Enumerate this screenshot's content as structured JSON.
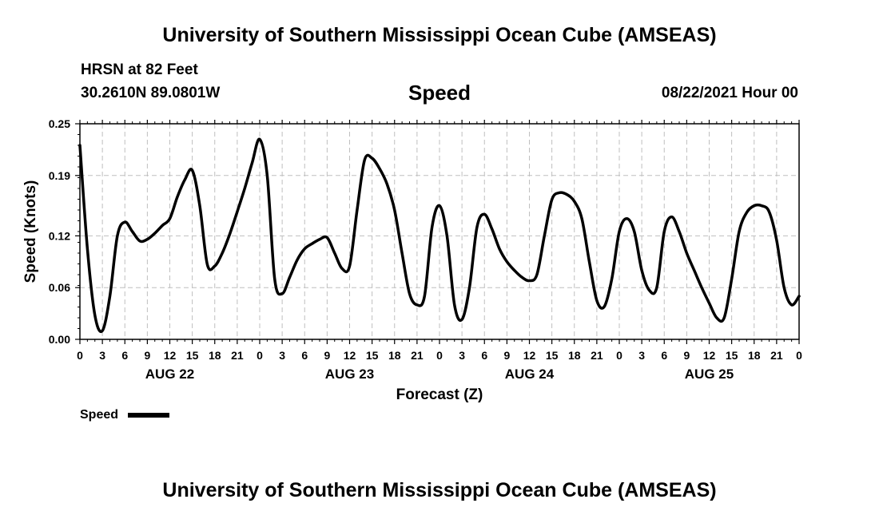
{
  "page": {
    "title_top": "University of Southern Mississippi Ocean Cube (AMSEAS)",
    "title_bottom": "University of Southern Mississippi Ocean Cube (AMSEAS)",
    "station": "HRSN at 82 Feet",
    "coords": "30.2610N  89.0801W",
    "variable": "Speed",
    "datetime": "08/22/2021 Hour 00"
  },
  "colors": {
    "line": "#000000",
    "grid": "#bfbfbf",
    "background": "#ffffff"
  },
  "chart_data": {
    "type": "line",
    "title": "Speed",
    "xlabel": "Forecast (Z)",
    "ylabel": "Speed (Knots)",
    "xlim": [
      0,
      96
    ],
    "ylim": [
      0,
      0.25
    ],
    "yticks": [
      0.0,
      0.06,
      0.12,
      0.19,
      0.25
    ],
    "ytick_labels": [
      "0.00",
      "0.06",
      "0.12",
      "0.19",
      "0.25"
    ],
    "xticks": [
      0,
      3,
      6,
      9,
      12,
      15,
      18,
      21,
      24,
      27,
      30,
      33,
      36,
      39,
      42,
      45,
      48,
      51,
      54,
      57,
      60,
      63,
      66,
      69,
      72,
      75,
      78,
      81,
      84,
      87,
      90,
      93,
      96
    ],
    "xtick_labels": [
      "0",
      "3",
      "6",
      "9",
      "12",
      "15",
      "18",
      "21",
      "0",
      "3",
      "6",
      "9",
      "12",
      "15",
      "18",
      "21",
      "0",
      "3",
      "6",
      "9",
      "12",
      "15",
      "18",
      "21",
      "0",
      "3",
      "6",
      "9",
      "12",
      "15",
      "18",
      "21",
      "0"
    ],
    "day_labels": [
      {
        "hour": 12,
        "label": "AUG 22"
      },
      {
        "hour": 36,
        "label": "AUG 23"
      },
      {
        "hour": 60,
        "label": "AUG 24"
      },
      {
        "hour": 84,
        "label": "AUG 25"
      }
    ],
    "legend": {
      "label": "Speed",
      "position": "bottom-left"
    },
    "series": [
      {
        "name": "Speed",
        "x": [
          0,
          1,
          2,
          3,
          4,
          5,
          6,
          7,
          8,
          9,
          10,
          11,
          12,
          13,
          14,
          15,
          16,
          17,
          18,
          19,
          20,
          21,
          22,
          23,
          24,
          25,
          26,
          27,
          28,
          29,
          30,
          31,
          32,
          33,
          34,
          35,
          36,
          37,
          38,
          39,
          40,
          41,
          42,
          43,
          44,
          45,
          46,
          47,
          48,
          49,
          50,
          51,
          52,
          53,
          54,
          55,
          56,
          57,
          58,
          59,
          60,
          61,
          62,
          63,
          64,
          65,
          66,
          67,
          68,
          69,
          70,
          71,
          72,
          73,
          74,
          75,
          76,
          77,
          78,
          79,
          80,
          81,
          82,
          83,
          84,
          85,
          86,
          87,
          88,
          89,
          90,
          91,
          92,
          93,
          94,
          95,
          96
        ],
        "values": [
          0.225,
          0.105,
          0.028,
          0.01,
          0.05,
          0.12,
          0.136,
          0.125,
          0.114,
          0.116,
          0.123,
          0.132,
          0.14,
          0.165,
          0.185,
          0.196,
          0.155,
          0.087,
          0.085,
          0.1,
          0.122,
          0.148,
          0.175,
          0.205,
          0.232,
          0.19,
          0.07,
          0.053,
          0.072,
          0.092,
          0.105,
          0.111,
          0.116,
          0.118,
          0.1,
          0.082,
          0.085,
          0.15,
          0.208,
          0.21,
          0.198,
          0.18,
          0.15,
          0.1,
          0.053,
          0.04,
          0.05,
          0.13,
          0.155,
          0.12,
          0.04,
          0.023,
          0.06,
          0.13,
          0.145,
          0.128,
          0.105,
          0.09,
          0.08,
          0.072,
          0.068,
          0.075,
          0.12,
          0.162,
          0.17,
          0.168,
          0.16,
          0.14,
          0.09,
          0.045,
          0.038,
          0.07,
          0.125,
          0.14,
          0.125,
          0.08,
          0.057,
          0.06,
          0.125,
          0.142,
          0.125,
          0.1,
          0.08,
          0.06,
          0.042,
          0.025,
          0.025,
          0.07,
          0.125,
          0.147,
          0.155,
          0.155,
          0.148,
          0.115,
          0.06,
          0.04,
          0.05
        ]
      }
    ]
  }
}
